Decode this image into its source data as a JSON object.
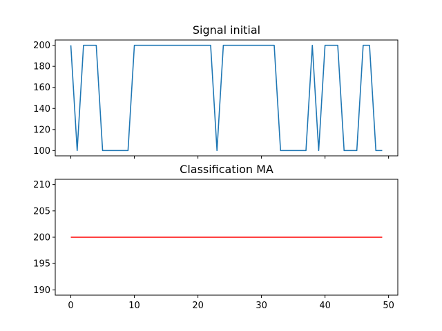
{
  "chart_data": [
    {
      "type": "line",
      "title": "Signal initial",
      "xlabel": "",
      "ylabel": "",
      "xlim": [
        -2.45,
        51.45
      ],
      "ylim": [
        95,
        205
      ],
      "xticks": [
        0,
        10,
        20,
        30,
        40,
        50
      ],
      "xtick_labels_visible": false,
      "yticks": [
        100,
        120,
        140,
        160,
        180,
        200
      ],
      "ytick_labels": [
        "100",
        "120",
        "140",
        "160",
        "180",
        "200"
      ],
      "grid": false,
      "series": [
        {
          "color": "#1f77b4",
          "x": [
            0,
            1,
            2,
            3,
            4,
            5,
            6,
            7,
            8,
            9,
            10,
            11,
            12,
            13,
            14,
            15,
            16,
            17,
            18,
            19,
            20,
            21,
            22,
            23,
            24,
            25,
            26,
            27,
            28,
            29,
            30,
            31,
            32,
            33,
            34,
            35,
            36,
            37,
            38,
            39,
            40,
            41,
            42,
            43,
            44,
            45,
            46,
            47,
            48,
            49
          ],
          "y": [
            200,
            100,
            200,
            200,
            200,
            100,
            100,
            100,
            100,
            100,
            200,
            200,
            200,
            200,
            200,
            200,
            200,
            200,
            200,
            200,
            200,
            200,
            200,
            100,
            200,
            200,
            200,
            200,
            200,
            200,
            200,
            200,
            200,
            100,
            100,
            100,
            100,
            100,
            200,
            100,
            200,
            200,
            200,
            100,
            100,
            100,
            200,
            200,
            100,
            100
          ]
        }
      ]
    },
    {
      "type": "line",
      "title": "Classification  MA",
      "xlabel": "",
      "ylabel": "",
      "xlim": [
        -2.45,
        51.45
      ],
      "ylim": [
        189,
        211
      ],
      "xticks": [
        0,
        10,
        20,
        30,
        40,
        50
      ],
      "xtick_labels": [
        "0",
        "10",
        "20",
        "30",
        "40",
        "50"
      ],
      "yticks": [
        190,
        195,
        200,
        205,
        210
      ],
      "ytick_labels": [
        "190",
        "195",
        "200",
        "205",
        "210"
      ],
      "grid": false,
      "series": [
        {
          "color": "#ff0000",
          "x": [
            0,
            49
          ],
          "y": [
            200,
            200
          ]
        }
      ]
    }
  ]
}
